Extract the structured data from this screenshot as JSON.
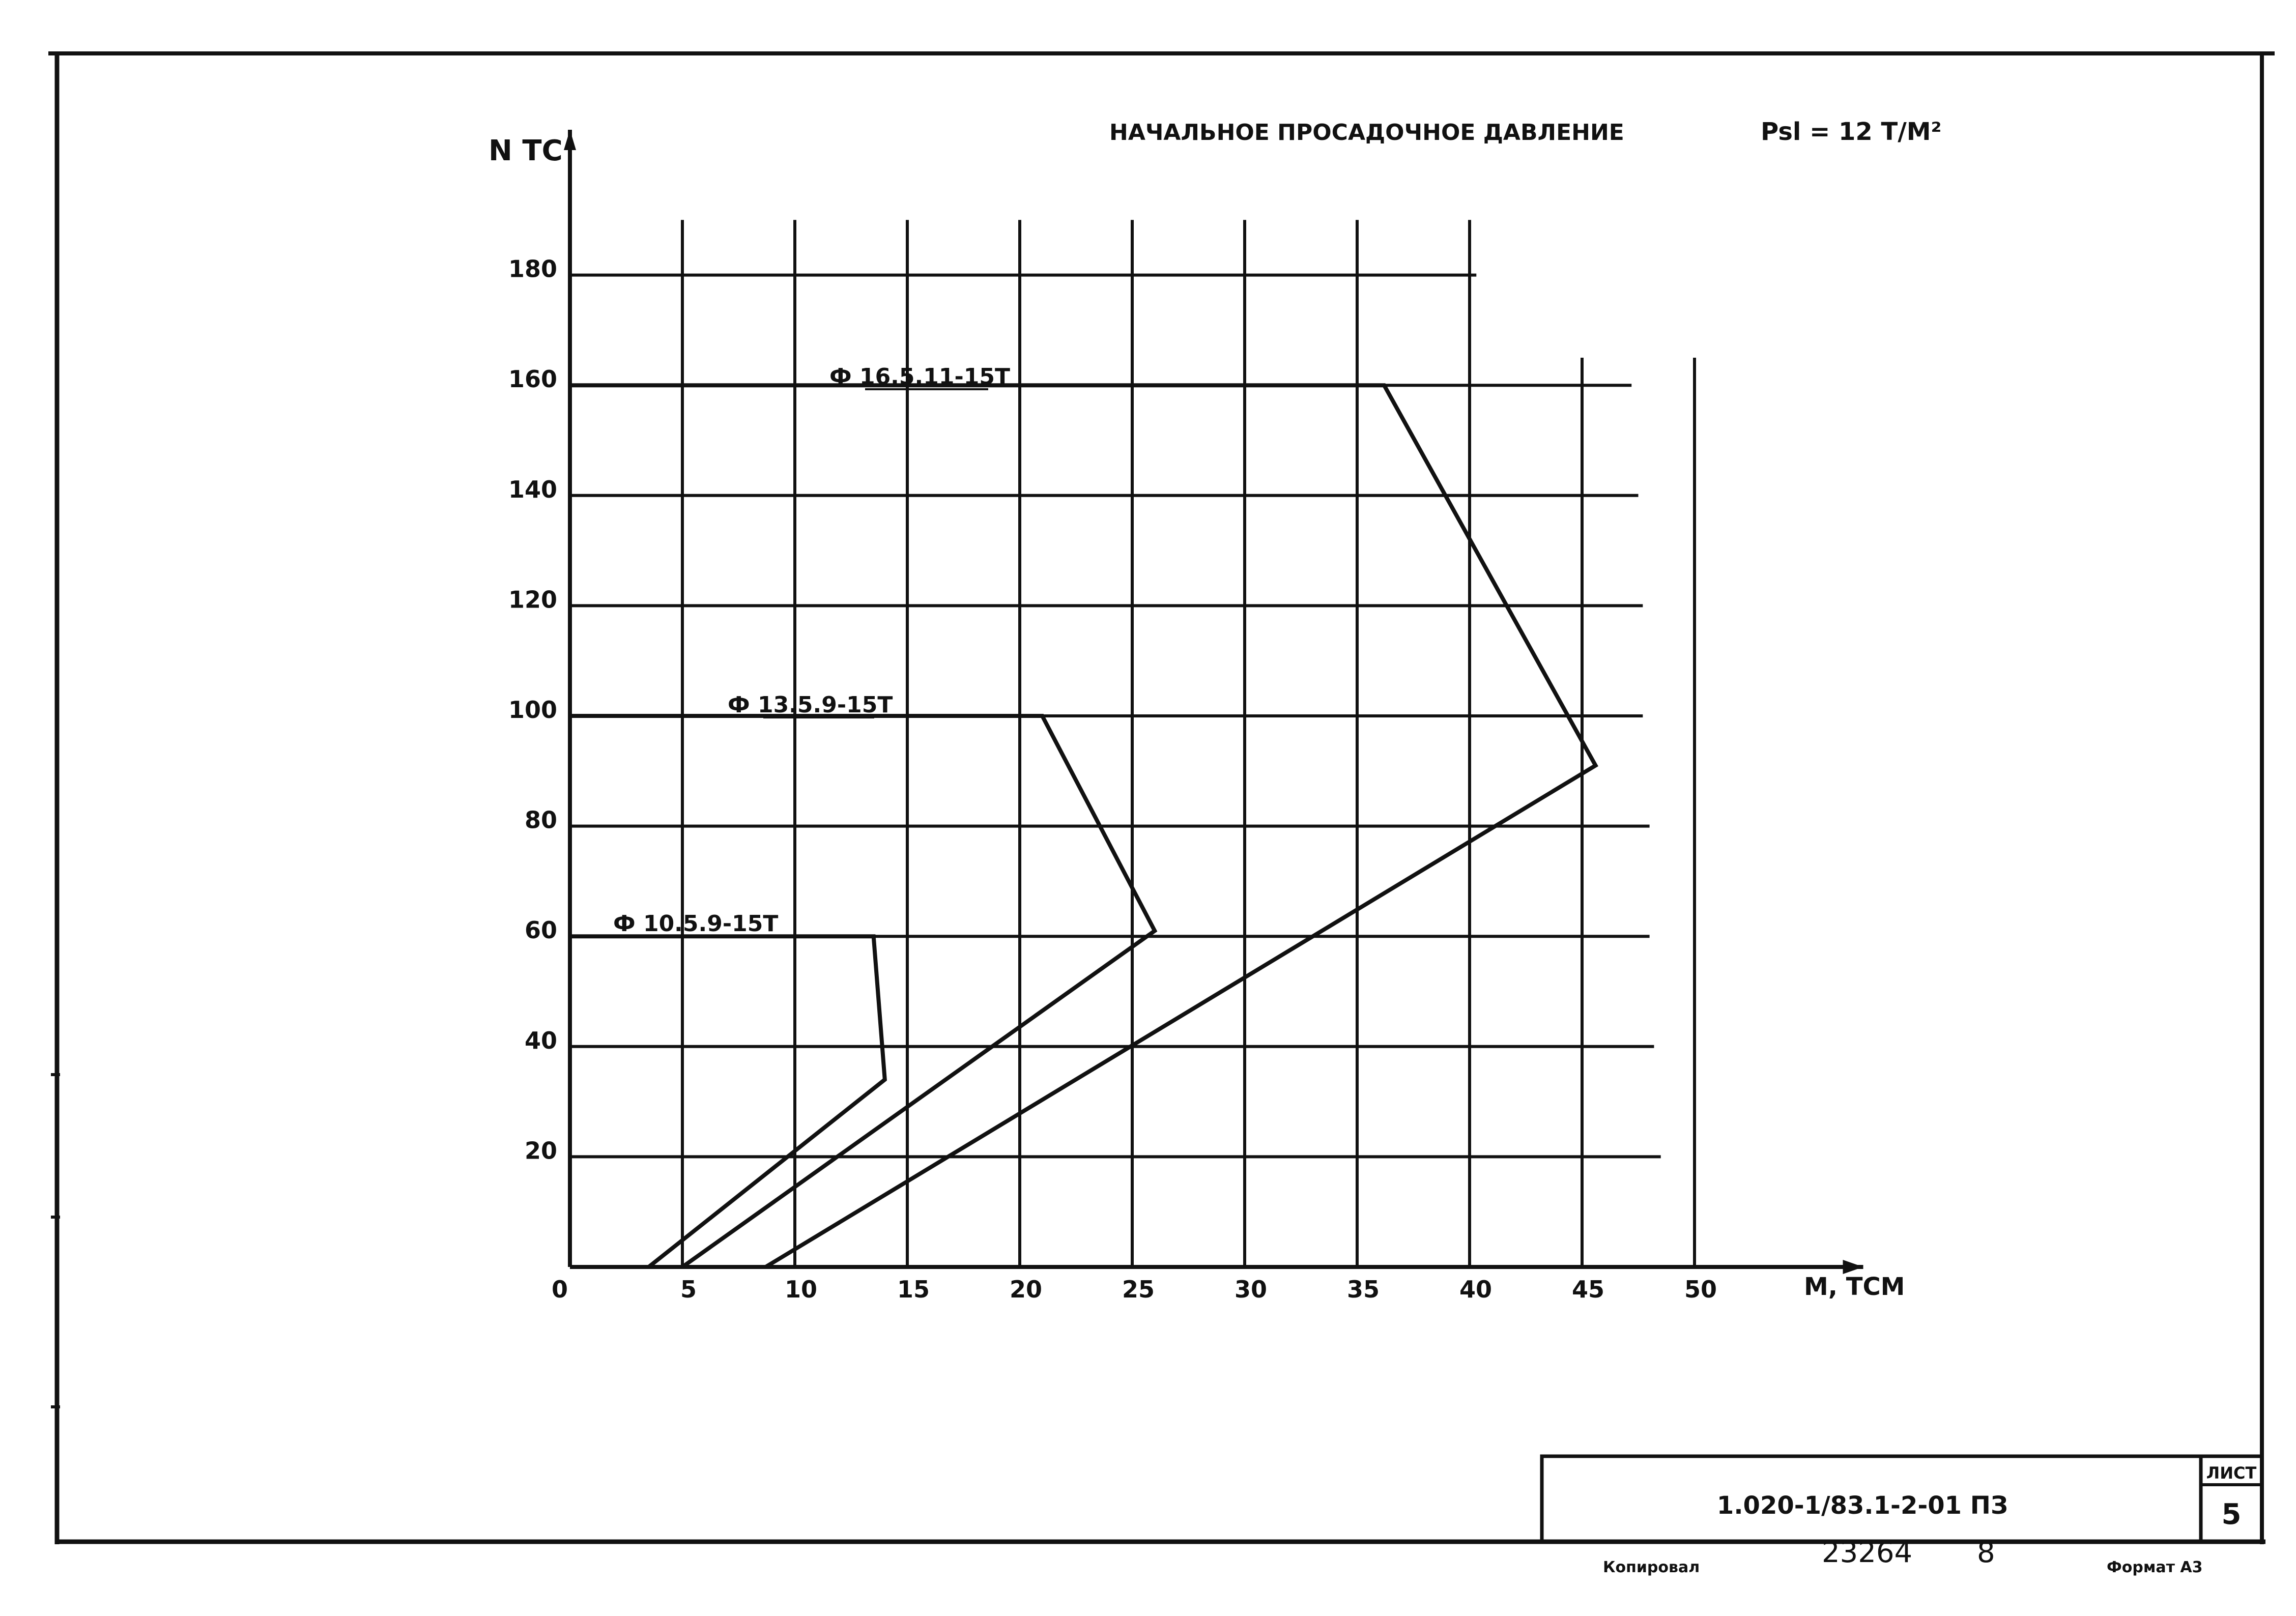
{
  "chart_data": {
    "type": "line",
    "title": "НАЧАЛЬНОЕ ПРОСАДОЧНОЕ ДАВЛЕНИЕ",
    "title_formula": "Psl = 12 Т/М²",
    "xlabel": "М, ТСМ",
    "ylabel": "N ТС",
    "xlim": [
      0,
      50
    ],
    "ylim": [
      0,
      180
    ],
    "x_ticks": [
      "0",
      "5",
      "10",
      "15",
      "20",
      "25",
      "30",
      "35",
      "40",
      "45",
      "50"
    ],
    "y_ticks": [
      "20",
      "40",
      "60",
      "80",
      "100",
      "120",
      "140",
      "160",
      "180"
    ],
    "grid": true,
    "series": [
      {
        "name": "Ф 16.5.11-15Т",
        "x": [
          0,
          36.2,
          45.6,
          8.7
        ],
        "y": [
          160,
          160,
          91,
          0
        ]
      },
      {
        "name": "Ф 13.5.9-15Т",
        "x": [
          0,
          21,
          26,
          5
        ],
        "y": [
          100,
          100,
          61,
          0
        ]
      },
      {
        "name": "Ф 10.5.9-15Т",
        "x": [
          0,
          13.5,
          14,
          3.5
        ],
        "y": [
          60,
          60,
          34,
          0
        ]
      }
    ]
  },
  "stamp": {
    "sheet_label": "ЛИСТ",
    "sheet_number": "5",
    "document_code": "1.020-1/83.1-2-01 ПЗ"
  },
  "footer": {
    "copied_label": "Копировал",
    "inventory_number": "23264",
    "inventory_extra": "8",
    "format_label": "Формат А3"
  },
  "colors": {
    "ink": "#111111",
    "paper": "#ffffff"
  }
}
